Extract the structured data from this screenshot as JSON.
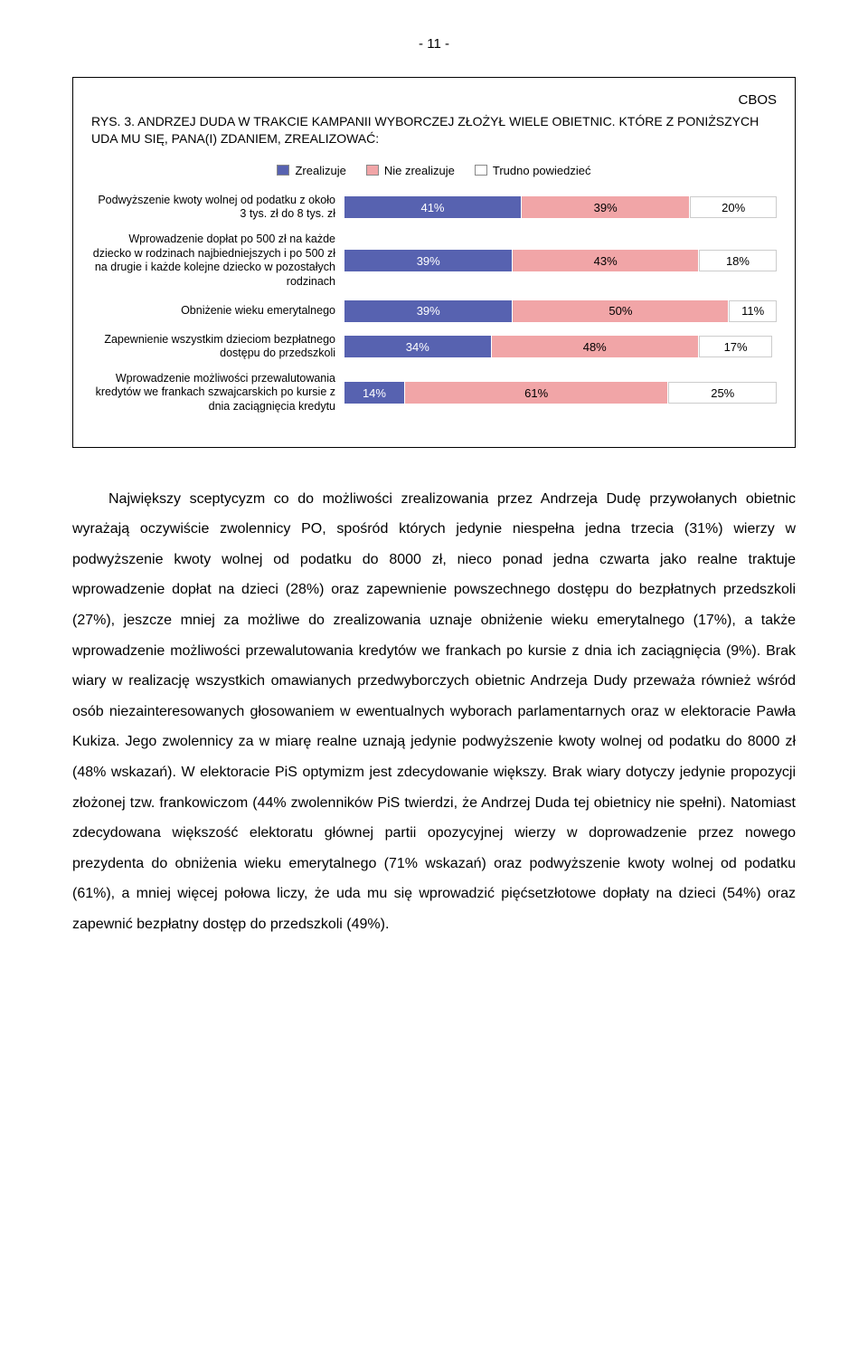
{
  "page_number": "- 11 -",
  "chart": {
    "box_label": "CBOS",
    "title_prefix": "RYS. 3.",
    "title_rest": "ANDRZEJ DUDA W TRAKCIE KAMPANII WYBORCZEJ ZŁOŻYŁ WIELE OBIETNIC. KTÓRE Z PONIŻSZYCH UDA MU SIĘ, PANA(I) ZDANIEM, ZREALIZOWAĆ:",
    "legend": [
      {
        "label": "Zrealizuje",
        "color": "#5762b0"
      },
      {
        "label": "Nie zrealizuje",
        "color": "#f1a5a7"
      },
      {
        "label": "Trudno powiedzieć",
        "color": "#ffffff"
      }
    ],
    "colors": {
      "s1": "#5762b0",
      "s2": "#f1a5a7",
      "s3": "#ffffff"
    },
    "rows": [
      {
        "label": "Podwyższenie kwoty wolnej od podatku z około 3 tys. zł do 8 tys. zł",
        "v1": 41,
        "v2": 39,
        "v3": 20,
        "l1": "41%",
        "l2": "39%",
        "l3": "20%"
      },
      {
        "label": "Wprowadzenie dopłat po 500 zł na każde dziecko w rodzinach najbiedniejszych i po 500 zł na drugie i każde kolejne dziecko w pozostałych rodzinach",
        "v1": 39,
        "v2": 43,
        "v3": 18,
        "l1": "39%",
        "l2": "43%",
        "l3": "18%"
      },
      {
        "label": "Obniżenie wieku emerytalnego",
        "v1": 39,
        "v2": 50,
        "v3": 11,
        "l1": "39%",
        "l2": "50%",
        "l3": "11%"
      },
      {
        "label": "Zapewnienie wszystkim dzieciom bezpłatnego dostępu do przedszkoli",
        "v1": 34,
        "v2": 48,
        "v3": 17,
        "l1": "34%",
        "l2": "48%",
        "l3": "17%"
      },
      {
        "label": "Wprowadzenie możliwości przewalutowania kredytów we frankach szwajcarskich po kursie z dnia zaciągnięcia kredytu",
        "v1": 14,
        "v2": 61,
        "v3": 25,
        "l1": "14%",
        "l2": "61%",
        "l3": "25%"
      }
    ]
  },
  "body_text": "Największy sceptycyzm co do możliwości zrealizowania przez Andrzeja Dudę przywołanych obietnic wyrażają oczywiście zwolennicy PO, spośród których jedynie niespełna jedna trzecia (31%) wierzy w podwyższenie kwoty wolnej od podatku do 8000 zł, nieco ponad jedna czwarta jako realne traktuje wprowadzenie dopłat na dzieci (28%) oraz zapewnienie powszechnego dostępu do bezpłatnych przedszkoli (27%), jeszcze mniej za możliwe do zrealizowania uznaje obniżenie wieku emerytalnego (17%), a także wprowadzenie możliwości przewalutowania kredytów we frankach po kursie z dnia ich zaciągnięcia (9%). Brak wiary w realizację wszystkich omawianych przedwyborczych obietnic Andrzeja Dudy przeważa również wśród osób niezainteresowanych głosowaniem w ewentualnych wyborach parlamentarnych oraz w elektoracie Pawła Kukiza. Jego zwolennicy za w miarę realne uznają jedynie podwyższenie kwoty wolnej od podatku do 8000 zł (48% wskazań). W elektoracie PiS optymizm jest zdecydowanie większy. Brak wiary dotyczy jedynie propozycji złożonej tzw. frankowiczom (44% zwolenników PiS twierdzi, że Andrzej Duda tej obietnicy nie spełni). Natomiast zdecydowana większość elektoratu głównej partii opozycyjnej wierzy w doprowadzenie przez nowego prezydenta do obniżenia wieku emerytalnego (71% wskazań) oraz podwyższenie kwoty wolnej od podatku (61%), a mniej więcej połowa liczy, że uda mu się wprowadzić pięćsetzłotowe dopłaty na dzieci (54%) oraz zapewnić bezpłatny dostęp do przedszkoli (49%)."
}
